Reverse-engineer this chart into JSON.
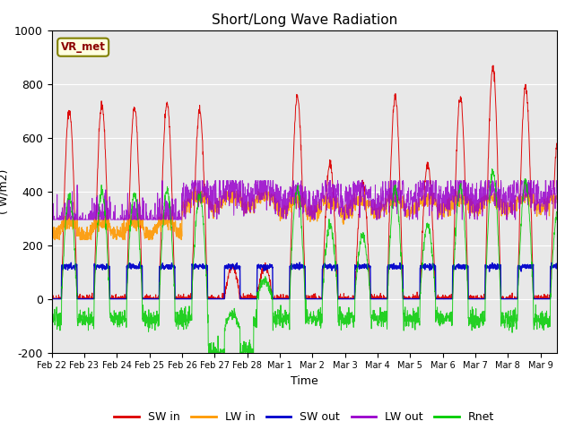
{
  "title": "Short/Long Wave Radiation",
  "xlabel": "Time",
  "ylabel": "( W/m2)",
  "ylim": [
    -200,
    1000
  ],
  "background_color": "#e8e8e8",
  "station_label": "VR_met",
  "tick_labels": [
    "Feb 22",
    "Feb 23",
    "Feb 24",
    "Feb 25",
    "Feb 26",
    "Feb 27",
    "Feb 28",
    "Mar 1",
    "Mar 2",
    "Mar 3",
    "Mar 4",
    "Mar 5",
    "Mar 6",
    "Mar 7",
    "Mar 8",
    "Mar 9"
  ],
  "colors": {
    "SW_in": "#dd0000",
    "LW_in": "#ff9900",
    "SW_out": "#0000cc",
    "LW_out": "#9900cc",
    "Rnet": "#00cc00"
  },
  "legend_labels": [
    "SW in",
    "LW in",
    "SW out",
    "LW out",
    "Rnet"
  ],
  "sw_peaks": [
    700,
    720,
    710,
    730,
    700,
    120,
    120,
    750,
    500,
    430,
    750,
    500,
    750,
    860,
    790,
    600
  ],
  "n_days": 15.5
}
